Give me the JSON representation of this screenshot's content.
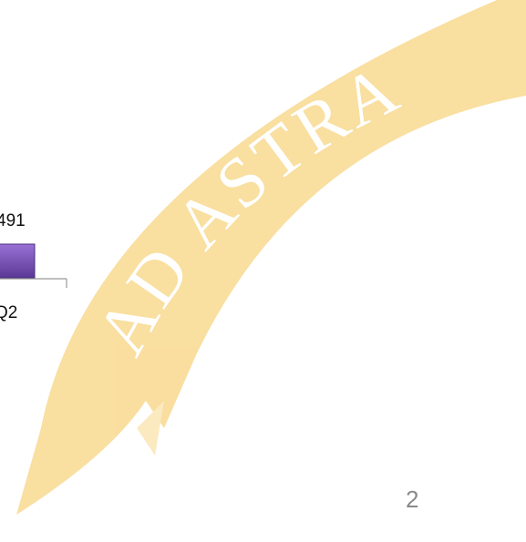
{
  "watermark": "AD ASTRA",
  "chart_fragment": {
    "bar_label": "491",
    "category": "Q2"
  },
  "page_number": "2"
}
